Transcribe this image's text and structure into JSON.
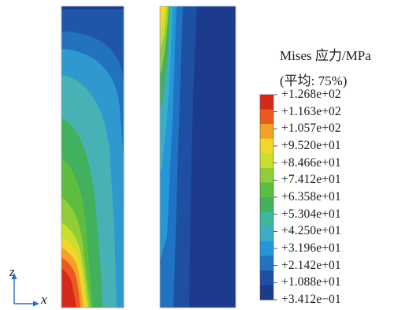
{
  "legend": {
    "title_line1": "Mises 应力/MPa",
    "title_line2": "(平均: 75%)",
    "colors": [
      "#d7281c",
      "#ea5a1e",
      "#f2a229",
      "#f2d62a",
      "#c9de2f",
      "#91cd38",
      "#5cbd3f",
      "#42b05c",
      "#3fb89a",
      "#3aaec7",
      "#2497d8",
      "#2072c2",
      "#1e4fa3",
      "#1d3b8c"
    ],
    "ticks": [
      "+1.268e+02",
      "+1.163e+02",
      "+1.057e+02",
      "+9.520e+01",
      "+8.466e+01",
      "+7.412e+01",
      "+6.358e+01",
      "+5.304e+01",
      "+4.250e+01",
      "+3.196e+01",
      "+2.142e+01",
      "+1.088e+01",
      "+3.412e−01"
    ]
  },
  "axes": {
    "vertical_label": "z",
    "horizontal_label": "x"
  }
}
